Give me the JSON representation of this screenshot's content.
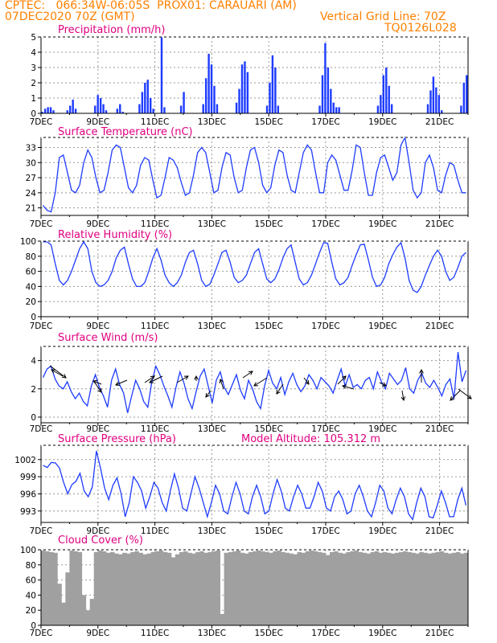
{
  "header": {
    "line1": "CPTEC:   066:34W-06:05S  PROX01: CARAUARI (AM)",
    "date": "07DEC2020 70Z (GMT)",
    "grid_note": "Vertical Grid Line: 70Z",
    "code": "TQ0126L028"
  },
  "colors": {
    "header": "#ff8000",
    "title": "#e00080",
    "series": "#1e3cff",
    "cloud": "#a0a0a0"
  },
  "x_labels": [
    "7DEC",
    "9DEC",
    "11DEC",
    "13DEC",
    "15DEC",
    "17DEC",
    "19DEC",
    "21DEC"
  ],
  "panels": [
    {
      "id": "precip",
      "title": "Precipitation (mm/h)",
      "extra": "",
      "chart_data": {
        "type": "bar",
        "ylim": [
          0,
          5
        ],
        "yticks": [
          "0",
          "1",
          "2",
          "3",
          "4",
          "5"
        ],
        "x_start": "07DEC",
        "x_end": "22DEC",
        "values": [
          0.1,
          0.3,
          0.4,
          0.4,
          0.2,
          0,
          0,
          0,
          0,
          0.2,
          0.5,
          0.9,
          0.3,
          0,
          0,
          0,
          0,
          0,
          0,
          0.5,
          1.2,
          1.0,
          0.6,
          0.2,
          0,
          0,
          0,
          0.3,
          0.6,
          0.1,
          0,
          0,
          0,
          0,
          0,
          0.6,
          1.4,
          2.0,
          2.2,
          1.0,
          0.3,
          0,
          0,
          5.0,
          0.4,
          0,
          0,
          0,
          0,
          0,
          0.5,
          1.4,
          0,
          0,
          0,
          0,
          0,
          0,
          0.6,
          2.3,
          3.9,
          3.2,
          1.8,
          0.6,
          0,
          0,
          0,
          0,
          0,
          0,
          0.7,
          1.6,
          3.2,
          3.4,
          2.7,
          0,
          0,
          0,
          0,
          0,
          0,
          0.5,
          2.0,
          3.8,
          3.0,
          0.5,
          0,
          0,
          0,
          0,
          0,
          0,
          0,
          0,
          0,
          0,
          0,
          0,
          0,
          0,
          0.5,
          2.5,
          4.6,
          3.0,
          1.6,
          0.7,
          0.4,
          0.4,
          0,
          0,
          0,
          0,
          0,
          0,
          0,
          0,
          0,
          0,
          0,
          0,
          0,
          0.5,
          1.2,
          2.5,
          3.0,
          1.8,
          0.6,
          0,
          0,
          0,
          0,
          0,
          0,
          0,
          0,
          0,
          0,
          0,
          0,
          0.6,
          1.5,
          2.4,
          1.7,
          1.2,
          0.2,
          0,
          0,
          0,
          0,
          0,
          0,
          0.5,
          2.0,
          2.5
        ]
      }
    },
    {
      "id": "temp",
      "title": "Surface Temperature (nC)",
      "extra": "",
      "chart_data": {
        "type": "line",
        "ylim": [
          19.5,
          35
        ],
        "yticks": [
          "21",
          "24",
          "27",
          "30",
          "33"
        ],
        "ytickvals": [
          21,
          24,
          27,
          30,
          33
        ],
        "x_start": "07DEC",
        "x_end": "22DEC",
        "values": [
          21.5,
          20.5,
          20.2,
          24,
          31,
          31.5,
          28,
          24.5,
          24,
          25.5,
          30,
          32.5,
          31,
          27,
          24,
          24.5,
          28,
          32.5,
          33.5,
          33,
          29,
          25,
          24,
          25.5,
          29.5,
          31,
          30.5,
          26.5,
          23,
          23.5,
          27,
          31,
          30.5,
          29,
          26,
          23.5,
          24,
          27.5,
          32,
          33,
          32,
          28,
          24,
          24.5,
          29,
          32,
          31.5,
          27,
          24,
          24.5,
          29,
          32.5,
          33,
          30,
          25.5,
          24,
          25,
          29.5,
          32.5,
          32,
          27.5,
          24.5,
          24,
          28,
          32,
          33.5,
          32.5,
          28,
          24,
          24,
          30,
          31.5,
          30.5,
          27.5,
          24.5,
          24.5,
          28.5,
          33.5,
          33,
          28,
          23.5,
          23.5,
          28,
          31,
          31.5,
          29,
          26.5,
          28,
          33.5,
          35,
          30,
          24.5,
          23,
          24,
          30,
          31.5,
          29,
          24.5,
          24,
          27.5,
          30,
          29.5,
          26.5,
          24,
          24
        ]
      }
    },
    {
      "id": "rh",
      "title": "Relative Humidity (%)",
      "extra": "",
      "chart_data": {
        "type": "line",
        "ylim": [
          0,
          100
        ],
        "yticks": [
          "0",
          "20",
          "40",
          "60",
          "80",
          "100"
        ],
        "ytickvals": [
          0,
          20,
          40,
          60,
          80,
          100
        ],
        "x_start": "07DEC",
        "x_end": "22DEC",
        "values": [
          99,
          99,
          95,
          70,
          48,
          42,
          48,
          60,
          75,
          90,
          99,
          90,
          60,
          45,
          40,
          42,
          48,
          60,
          78,
          88,
          92,
          70,
          50,
          40,
          40,
          45,
          60,
          78,
          90,
          75,
          55,
          45,
          40,
          45,
          55,
          72,
          85,
          88,
          70,
          48,
          40,
          43,
          55,
          70,
          85,
          88,
          72,
          52,
          45,
          48,
          55,
          70,
          85,
          90,
          70,
          50,
          45,
          50,
          62,
          78,
          90,
          95,
          72,
          50,
          42,
          45,
          55,
          70,
          85,
          98,
          97,
          72,
          50,
          42,
          45,
          52,
          68,
          82,
          95,
          96,
          75,
          52,
          40,
          42,
          52,
          70,
          82,
          92,
          98,
          78,
          48,
          35,
          32,
          40,
          55,
          68,
          80,
          88,
          80,
          60,
          48,
          52,
          65,
          80,
          85
        ]
      }
    },
    {
      "id": "wind",
      "title": "Surface Wind (m/s)",
      "extra": "",
      "chart_data": {
        "type": "line",
        "ylim": [
          -0.4,
          5
        ],
        "yticks": [
          "0",
          "2",
          "4"
        ],
        "ytickvals": [
          0,
          2,
          4
        ],
        "x_start": "07DEC",
        "x_end": "22DEC",
        "values": [
          2.8,
          3.4,
          3.6,
          2.7,
          2.2,
          2.0,
          2.5,
          1.8,
          1.3,
          1.7,
          1.1,
          0.8,
          2.2,
          3.0,
          2.1,
          1.5,
          0.7,
          2.6,
          3.4,
          2.3,
          1.7,
          0.3,
          1.5,
          2.6,
          2.0,
          1.1,
          0.7,
          2.5,
          3.6,
          3.0,
          2.2,
          1.5,
          0.7,
          2.1,
          3.2,
          2.4,
          1.3,
          0.6,
          1.8,
          2.9,
          3.4,
          2.2,
          1.0,
          2.6,
          3.2,
          2.1,
          1.6,
          2.3,
          3.0,
          1.9,
          1.3,
          2.6,
          2.0,
          1.1,
          0.6,
          2.2,
          3.3,
          2.4,
          2.0,
          2.8,
          1.6,
          2.5,
          3.1,
          2.3,
          1.8,
          2.2,
          3.0,
          2.6,
          2.0,
          2.8,
          2.5,
          2.2,
          1.7,
          2.6,
          3.4,
          2.2,
          3.0,
          2.1,
          2.3,
          2.0,
          2.6,
          2.8,
          2.0,
          3.2,
          2.5,
          2.0,
          3.1,
          2.7,
          2.3,
          2.6,
          3.5,
          2.0,
          1.7,
          2.6,
          3.1,
          2.4,
          2.1,
          2.6,
          2.1,
          1.5,
          2.3,
          2.7,
          1.3,
          4.6,
          2.5,
          3.3
        ]
      }
    },
    {
      "id": "press",
      "title": "Surface Pressure (hPa)",
      "extra": "Model Altitude: 105.312  m",
      "chart_data": {
        "type": "line",
        "ylim": [
          991,
          1004.5
        ],
        "yticks": [
          "993",
          "996",
          "999",
          "1002"
        ],
        "ytickvals": [
          993,
          996,
          999,
          1002
        ],
        "x_start": "07DEC",
        "x_end": "22DEC",
        "values": [
          1001,
          1000.6,
          1001.5,
          1001.4,
          1000.5,
          998,
          996,
          997.6,
          998.2,
          999.6,
          996.5,
          995.5,
          997.2,
          1003.5,
          1000.5,
          997,
          995,
          997.5,
          998.8,
          996,
          992,
          994.5,
          999,
          998,
          996.5,
          993.5,
          995.5,
          998,
          997,
          994.5,
          993,
          996.5,
          999.5,
          997,
          993.5,
          993,
          996,
          999,
          997,
          994.5,
          992,
          994.5,
          997.5,
          996,
          993,
          992.5,
          995.5,
          998,
          996,
          993,
          992.5,
          995.5,
          997.5,
          995.5,
          992.5,
          993,
          996,
          998.5,
          996.5,
          993.5,
          993,
          995.5,
          997.5,
          996,
          993.5,
          993.5,
          995.5,
          998,
          996.5,
          993.5,
          993,
          995.5,
          996.5,
          995,
          992.5,
          993,
          996,
          997.5,
          995.5,
          993,
          992,
          994.5,
          997.5,
          996.5,
          993.5,
          992.5,
          995,
          997,
          995.5,
          992.5,
          991.5,
          994.5,
          997,
          995.5,
          992,
          991.8,
          994,
          996.5,
          994.5,
          992,
          992,
          995,
          997,
          994
        ]
      }
    },
    {
      "id": "cloud",
      "title": "Cloud Cover (%)",
      "extra": "",
      "chart_data": {
        "type": "area",
        "ylim": [
          0,
          100
        ],
        "yticks": [
          "0",
          "20",
          "40",
          "60",
          "80",
          "100"
        ],
        "ytickvals": [
          0,
          20,
          40,
          60,
          80,
          100
        ],
        "x_start": "07DEC",
        "x_end": "22DEC",
        "values": [
          99,
          98,
          97,
          96,
          55,
          30,
          70,
          99,
          98,
          97,
          40,
          20,
          35,
          97,
          99,
          98,
          96,
          97,
          95,
          94,
          96,
          95,
          97,
          98,
          96,
          94,
          95,
          97,
          98,
          99,
          97,
          96,
          90,
          94,
          97,
          98,
          96,
          95,
          97,
          98,
          96,
          97,
          98,
          99,
          15,
          96,
          97,
          98,
          99,
          96,
          95,
          97,
          98,
          99,
          98,
          97,
          96,
          98,
          99,
          97,
          96,
          95,
          94,
          97,
          96,
          98,
          99,
          98,
          97,
          96,
          93,
          97,
          98,
          96,
          95,
          97,
          98,
          99,
          97,
          96,
          95,
          97,
          98,
          96,
          97,
          96,
          95,
          96,
          97,
          98,
          97,
          96,
          95,
          97,
          96,
          95,
          96,
          97,
          98,
          96,
          95,
          96,
          97,
          95,
          96
        ]
      }
    }
  ]
}
